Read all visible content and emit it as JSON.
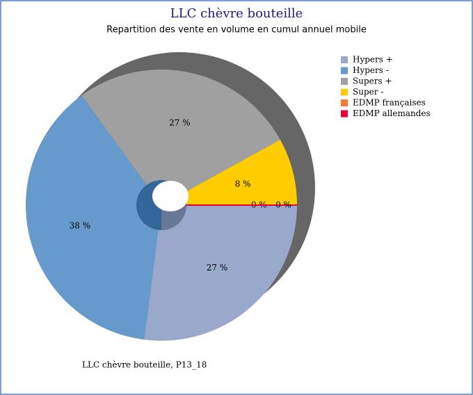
{
  "chart_data": {
    "type": "pie",
    "title": "LLC chèvre bouteille",
    "subtitle": "Repartition des vente en volume en cumul annuel mobile",
    "footnote": "LLC chèvre bouteille, P13_18",
    "categories": [
      "Hypers +",
      "Hypers -",
      "Supers +",
      "Super -",
      "EDMP françaises",
      "EDMP allemandes"
    ],
    "values": [
      27,
      38,
      27,
      8,
      0,
      0
    ],
    "value_labels": [
      "27 %",
      "38 %",
      "27 %",
      "8 %",
      "0 %",
      "0 %"
    ],
    "colors": [
      "#9aa8cc",
      "#6699cc",
      "#a0a0a0",
      "#ffcc00",
      "#ff7733",
      "#ee0033"
    ],
    "legend": "top-right"
  }
}
